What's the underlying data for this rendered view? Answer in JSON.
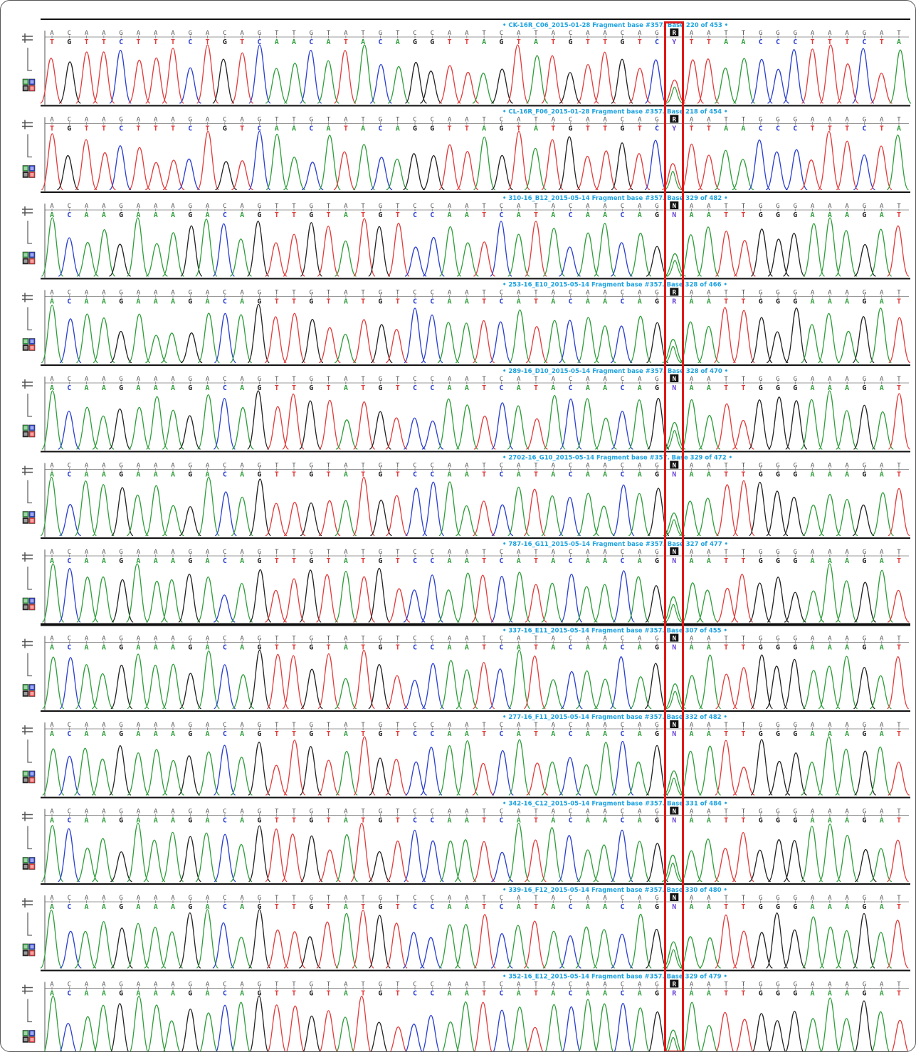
{
  "reference_sequence": "ACAAGAAAGACAGTTGTATGTCCAATCATACAACAGAAATTGGGAAAGAT",
  "complement_row": "TGTTCTTTCTGTCAACATACAGGTTAGTATGTTGTCTTTAACCCTTTCTA",
  "highlight_index": 36,
  "base_colors": {
    "A": "#2e9e3a",
    "C": "#2a3fd0",
    "G": "#222222",
    "T": "#e23b3b",
    "ambig": "#6b4ad8"
  },
  "tool_icons": [
    "insert-cursor-icon",
    "trace-height-icon",
    "zoom-base-icon"
  ],
  "chart_data": {
    "type": "sequence-chromatogram",
    "title": "",
    "xlabel": "",
    "ylabel": "",
    "highlighted_position": "Fragment base #357",
    "tracks": [
      {
        "label": "• CK-16R_C06_2015-01-28 Fragment base #357. Base 220 of 453 •",
        "call": "R",
        "complement_call": "Y",
        "reverse": true
      },
      {
        "label": "• CL-16R_F06_2015-01-28 Fragment base #357. Base 218 of 454 •",
        "call": "R",
        "complement_call": "Y",
        "reverse": true
      },
      {
        "label": "• 310-16_B12_2015-05-14 Fragment base #357. Base 329 of 482 •",
        "call": "N",
        "complement_call": "N",
        "reverse": false
      },
      {
        "label": "• 253-16_E10_2015-05-14 Fragment base #357. Base 328 of 466 •",
        "call": "R",
        "complement_call": "R",
        "reverse": false
      },
      {
        "label": "• 289-16_D10_2015-05-14 Fragment base #357. Base 328 of 470 •",
        "call": "N",
        "complement_call": "N",
        "reverse": false
      },
      {
        "label": "• 2702-16_G10_2015-05-14 Fragment base #357. Base 329 of 472 •",
        "call": "N",
        "complement_call": "N",
        "reverse": false
      },
      {
        "label": "• 787-16_G11_2015-05-14 Fragment base #357. Base 327 of 477 •",
        "call": "N",
        "complement_call": "N",
        "reverse": false
      },
      {
        "label": "• 337-16_E11_2015-05-14 Fragment base #357. Base 307 of 455 •",
        "call": "N",
        "complement_call": "N",
        "reverse": false
      },
      {
        "label": "• 277-16_F11_2015-05-14 Fragment base #357. Base 332 of 482 •",
        "call": "N",
        "complement_call": "N",
        "reverse": false
      },
      {
        "label": "• 342-16_C12_2015-05-14 Fragment base #357. Base 331 of 484 •",
        "call": "N",
        "complement_call": "N",
        "reverse": false
      },
      {
        "label": "• 339-16_F12_2015-05-14 Fragment base #357. Base 330 of 480 •",
        "call": "N",
        "complement_call": "N",
        "reverse": false
      },
      {
        "label": "• 352-16_E12_2015-05-14 Fragment base #357. Base 329 of 479 •",
        "call": "R",
        "complement_call": "R",
        "reverse": false
      }
    ]
  }
}
